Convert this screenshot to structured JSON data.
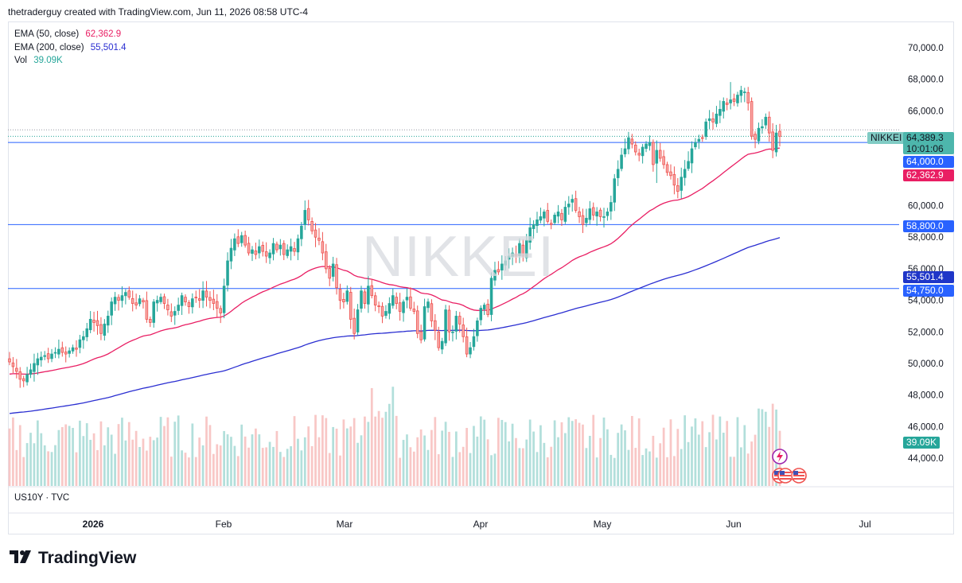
{
  "header": {
    "attribution": "thetraderguy created with TradingView.com, Jun 11, 2026 08:58 UTC-4"
  },
  "legend": [
    {
      "label": "EMA (50, close)",
      "value": "62,362.9",
      "color": "#e91e63"
    },
    {
      "label": "EMA (200, close)",
      "value": "55,501.4",
      "color": "#2a2ed1"
    },
    {
      "label": "Vol",
      "value": "39.09K",
      "color": "#26a69a"
    }
  ],
  "watermark": "NIKKEI",
  "sub_pane_label": "US10Y · TVC",
  "brand": "TradingView",
  "price_tags": {
    "symbol": "NIKKEI",
    "last_price": "64,389.3",
    "countdown": "10:01:06",
    "level_64000": "64,000.0",
    "ema50": "62,362.9",
    "level_58800": "58,800.0",
    "ema200": "55,501.4",
    "level_54750": "54,750.0",
    "volume": "39.09K"
  },
  "colors": {
    "up": "#26a69a",
    "down": "#ef5350",
    "ema50": "#e91e63",
    "ema200": "#2a2ed1",
    "hline": "#2962ff",
    "vol_up": "#b2dfdb",
    "vol_down": "#f8c7c6",
    "blue_tag": "#2962ff",
    "navy_tag": "#1f36c8"
  },
  "chart_data": {
    "type": "candlestick",
    "symbol": "NIKKEI",
    "y_axis": {
      "ticks": [
        44000,
        46000,
        48000,
        50000,
        52000,
        54000,
        56000,
        58000,
        60000,
        62000,
        64000,
        66000,
        68000,
        70000
      ],
      "tick_labels": [
        "44,000.0",
        "46,000.0",
        "48,000.0",
        "50,000.0",
        "52,000.0",
        "54,000.0",
        "56,000.0",
        "58,000.0",
        "60,000.0",
        "62,000.0",
        "64,000.0",
        "66,000.0",
        "68,000.0",
        "70,000.0"
      ]
    },
    "x_axis": {
      "labels": [
        "2026",
        "Feb",
        "Mar",
        "Apr",
        "May",
        "Jun",
        "Jul"
      ]
    },
    "horizontal_lines": [
      64000,
      58800,
      54750
    ],
    "last_price": 64389.3,
    "closes": [
      50100,
      49800,
      49500,
      49000,
      48900,
      49300,
      49600,
      50000,
      50300,
      50400,
      50500,
      50300,
      50600,
      50700,
      50900,
      50700,
      50600,
      50800,
      51000,
      50900,
      51500,
      51700,
      52200,
      52800,
      52600,
      52400,
      51900,
      52500,
      53000,
      53900,
      54200,
      54000,
      54300,
      54500,
      54200,
      53800,
      53700,
      54100,
      53900,
      52800,
      52600,
      53900,
      54000,
      54200,
      53800,
      53400,
      53000,
      53300,
      53700,
      54300,
      53900,
      53600,
      54100,
      54200,
      54000,
      54600,
      54200,
      54000,
      53800,
      53500,
      53200,
      54900,
      56500,
      57300,
      57900,
      57600,
      58100,
      57500,
      57000,
      57200,
      56900,
      57400,
      57100,
      56800,
      57000,
      57600,
      57200,
      57500,
      56900,
      57200,
      57400,
      57100,
      57900,
      58700,
      59700,
      59100,
      58400,
      58000,
      57800,
      57000,
      56000,
      55400,
      56300,
      54800,
      54000,
      53900,
      54600,
      52800,
      51900,
      53400,
      54600,
      53800,
      54900,
      54300,
      53700,
      53600,
      53000,
      53300,
      53800,
      54300,
      53800,
      53300,
      53900,
      54200,
      53500,
      53300,
      51900,
      51500,
      53600,
      53900,
      52700,
      52100,
      51000,
      51400,
      53400,
      52000,
      52000,
      53000,
      52500,
      51700,
      50600,
      51000,
      51700,
      52700,
      53500,
      53700,
      53100,
      55400,
      55900,
      55800,
      56300,
      56500,
      56800,
      57000,
      56800,
      57600,
      56800,
      57800,
      58600,
      58800,
      59100,
      59300,
      59600,
      59000,
      58800,
      59400,
      59600,
      59100,
      59900,
      60100,
      60400,
      59700,
      59300,
      58800,
      59200,
      59800,
      59400,
      59600,
      59300,
      59300,
      59600,
      60200,
      61700,
      62300,
      63200,
      63600,
      64300,
      63900,
      63400,
      63200,
      63700,
      63900,
      64000,
      62600,
      63500,
      63000,
      62600,
      62100,
      61900,
      61300,
      60900,
      61800,
      62300,
      62800,
      63600,
      64000,
      64200,
      64300,
      65300,
      65500,
      65300,
      65800,
      66100,
      66600,
      66400,
      66700,
      66600,
      67000,
      67300,
      67200,
      66500,
      64400,
      64200,
      64900,
      65000,
      65600,
      64600,
      63500,
      64600,
      64389
    ]
  }
}
